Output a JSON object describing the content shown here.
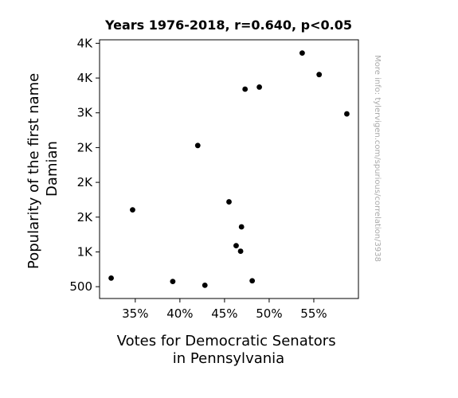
{
  "chart_data": {
    "type": "scatter",
    "title": "Years 1976-2018, r=0.640, p<0.05",
    "xlabel_lines": [
      "Votes for Democratic Senators",
      "in Pennsylvania"
    ],
    "ylabel_lines": [
      "Popularity of the first name",
      "Damian"
    ],
    "xlim": [
      0.31,
      0.6
    ],
    "ylim": [
      330,
      4050
    ],
    "x_ticks": [
      {
        "value": 0.35,
        "label": "35%"
      },
      {
        "value": 0.4,
        "label": "40%"
      },
      {
        "value": 0.45,
        "label": "45%"
      },
      {
        "value": 0.5,
        "label": "50%"
      },
      {
        "value": 0.55,
        "label": "55%"
      }
    ],
    "y_ticks": [
      {
        "value": 500,
        "label": "500"
      },
      {
        "value": 1000,
        "label": "1K"
      },
      {
        "value": 1500,
        "label": "2K"
      },
      {
        "value": 2000,
        "label": "2K"
      },
      {
        "value": 2500,
        "label": "2K"
      },
      {
        "value": 3000,
        "label": "3K"
      },
      {
        "value": 3500,
        "label": "4K"
      },
      {
        "value": 4000,
        "label": "4K"
      }
    ],
    "points": [
      {
        "x": 0.323,
        "y": 623
      },
      {
        "x": 0.347,
        "y": 1605
      },
      {
        "x": 0.392,
        "y": 575
      },
      {
        "x": 0.42,
        "y": 2530
      },
      {
        "x": 0.428,
        "y": 520
      },
      {
        "x": 0.455,
        "y": 1720
      },
      {
        "x": 0.463,
        "y": 1090
      },
      {
        "x": 0.468,
        "y": 1010
      },
      {
        "x": 0.469,
        "y": 1360
      },
      {
        "x": 0.473,
        "y": 3340
      },
      {
        "x": 0.481,
        "y": 585
      },
      {
        "x": 0.489,
        "y": 3370
      },
      {
        "x": 0.537,
        "y": 3860
      },
      {
        "x": 0.556,
        "y": 3550
      },
      {
        "x": 0.587,
        "y": 2985
      }
    ],
    "grid": false,
    "marker_color": "#000000",
    "watermark": "More info: tylervigen.com/spurious/correlation/3938"
  }
}
